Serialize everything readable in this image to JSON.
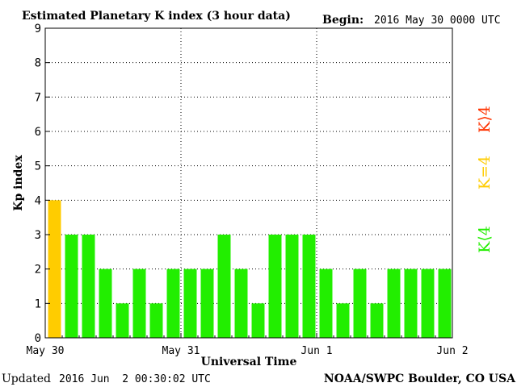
{
  "header": {
    "title": "Estimated Planetary K index (3 hour data)",
    "begin_label": "Begin:",
    "begin_value": "2016 May 30 0000 UTC"
  },
  "footer": {
    "updated_label": "Updated",
    "updated_value": "2016 Jun  2 00:30:02 UTC",
    "source": "NOAA/SWPC Boulder, CO USA"
  },
  "legend": {
    "k_less_4": {
      "text": "K⟨4",
      "color": "#22ee00"
    },
    "k_equal_4": {
      "text": "K=4",
      "color": "#ffcc00"
    },
    "k_greater_4": {
      "text": "K⟩4",
      "color": "#ff3300"
    }
  },
  "chart_data": {
    "type": "bar",
    "title": "Estimated Planetary K index (3 hour data)",
    "xlabel": "Universal Time",
    "ylabel": "Kp index",
    "ylim": [
      0,
      9
    ],
    "yticks": [
      0,
      1,
      2,
      3,
      4,
      5,
      6,
      7,
      8,
      9
    ],
    "x_tick_labels": [
      "May 30",
      "May 31",
      "Jun 1",
      "Jun 2"
    ],
    "grid": "dotted",
    "values": [
      4,
      3,
      3,
      2,
      1,
      2,
      1,
      2,
      2,
      2,
      3,
      2,
      1,
      3,
      3,
      3,
      2,
      1,
      2,
      1,
      2,
      2,
      2,
      2
    ],
    "colors": {
      "low": "#22ee00",
      "equal": "#ffcc00",
      "high": "#ff3300"
    }
  }
}
